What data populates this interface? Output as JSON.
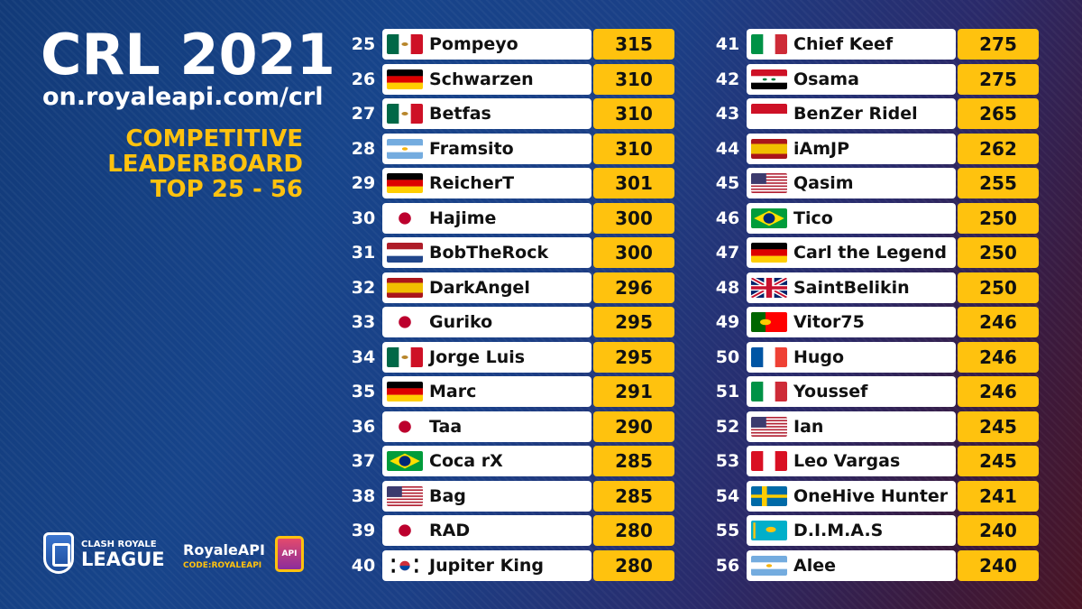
{
  "header": {
    "title": "CRL 2021",
    "url": "on.royaleapi.com/crl",
    "subtitle_lines": [
      "COMPETITIVE",
      "LEADERBOARD",
      "TOP 25 - 56"
    ]
  },
  "branding": {
    "league_small": "CLASH ROYALE",
    "league_big": "LEAGUE",
    "partner_name": "RoyaleAPI",
    "partner_code": "CODE:ROYALEAPI",
    "partner_badge": "API"
  },
  "colors": {
    "accent": "#ffc20e",
    "row_bg": "#ffffff",
    "text": "#111111"
  },
  "leaderboard": [
    [
      {
        "rank": "25",
        "name": "Pompeyo",
        "score": "315",
        "flag": "mexico"
      },
      {
        "rank": "26",
        "name": "Schwarzen",
        "score": "310",
        "flag": "germany"
      },
      {
        "rank": "27",
        "name": "Betfas",
        "score": "310",
        "flag": "mexico"
      },
      {
        "rank": "28",
        "name": "Framsito",
        "score": "310",
        "flag": "argentina"
      },
      {
        "rank": "29",
        "name": "ReicherT",
        "score": "301",
        "flag": "germany"
      },
      {
        "rank": "30",
        "name": "Hajime",
        "score": "300",
        "flag": "japan"
      },
      {
        "rank": "31",
        "name": "BobTheRock",
        "score": "300",
        "flag": "netherlands"
      },
      {
        "rank": "32",
        "name": "DarkAngel",
        "score": "296",
        "flag": "spain"
      },
      {
        "rank": "33",
        "name": "Guriko",
        "score": "295",
        "flag": "japan"
      },
      {
        "rank": "34",
        "name": "Jorge Luis",
        "score": "295",
        "flag": "mexico"
      },
      {
        "rank": "35",
        "name": "Marc",
        "score": "291",
        "flag": "germany"
      },
      {
        "rank": "36",
        "name": "Taa",
        "score": "290",
        "flag": "japan"
      },
      {
        "rank": "37",
        "name": "Coca rX",
        "score": "285",
        "flag": "brazil"
      },
      {
        "rank": "38",
        "name": "Bag",
        "score": "285",
        "flag": "usa"
      },
      {
        "rank": "39",
        "name": "RAD",
        "score": "280",
        "flag": "japan"
      },
      {
        "rank": "40",
        "name": "Jupiter King",
        "score": "280",
        "flag": "south-korea"
      }
    ],
    [
      {
        "rank": "41",
        "name": "Chief Keef",
        "score": "275",
        "flag": "italy"
      },
      {
        "rank": "42",
        "name": "Osama",
        "score": "275",
        "flag": "syria"
      },
      {
        "rank": "43",
        "name": "BenZer Ridel",
        "score": "265",
        "flag": "indonesia"
      },
      {
        "rank": "44",
        "name": "iAmJP",
        "score": "262",
        "flag": "spain"
      },
      {
        "rank": "45",
        "name": "Qasim",
        "score": "255",
        "flag": "usa"
      },
      {
        "rank": "46",
        "name": "Tico",
        "score": "250",
        "flag": "brazil"
      },
      {
        "rank": "47",
        "name": "Carl the Legend",
        "score": "250",
        "flag": "germany"
      },
      {
        "rank": "48",
        "name": "SaintBelikin",
        "score": "250",
        "flag": "uk"
      },
      {
        "rank": "49",
        "name": "Vitor75",
        "score": "246",
        "flag": "portugal"
      },
      {
        "rank": "50",
        "name": "Hugo",
        "score": "246",
        "flag": "france"
      },
      {
        "rank": "51",
        "name": "Youssef",
        "score": "246",
        "flag": "italy"
      },
      {
        "rank": "52",
        "name": "Ian",
        "score": "245",
        "flag": "usa"
      },
      {
        "rank": "53",
        "name": "Leo Vargas",
        "score": "245",
        "flag": "peru"
      },
      {
        "rank": "54",
        "name": "OneHive Hunter",
        "score": "241",
        "flag": "sweden"
      },
      {
        "rank": "55",
        "name": "D.I.M.A.S",
        "score": "240",
        "flag": "kazakhstan"
      },
      {
        "rank": "56",
        "name": "Alee",
        "score": "240",
        "flag": "argentina"
      }
    ]
  ]
}
